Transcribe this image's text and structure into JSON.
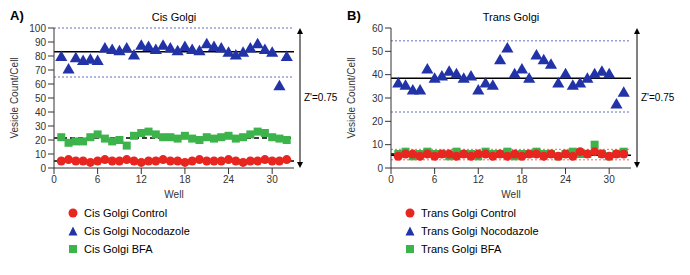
{
  "chart_data": [
    {
      "type": "scatter",
      "title": "Cis Golgi",
      "annotations": [
        "A)",
        "Z'=0.75"
      ],
      "xlabel": "Well",
      "ylabel": "Vesicle Count/Cell",
      "legend": "bottom",
      "x": [
        1,
        2,
        3,
        4,
        5,
        6,
        7,
        8,
        9,
        10,
        11,
        12,
        13,
        14,
        15,
        16,
        17,
        18,
        19,
        20,
        21,
        22,
        23,
        24,
        25,
        26,
        27,
        28,
        29,
        30,
        31,
        32
      ],
      "xlim": [
        0,
        33
      ],
      "xticks": [
        0,
        6,
        12,
        18,
        24,
        30
      ],
      "ylim": [
        0,
        100
      ],
      "yticks": [
        0,
        10,
        20,
        30,
        40,
        50,
        60,
        70,
        80,
        90,
        100
      ],
      "series": [
        {
          "name": "Cis Golgi Control",
          "color": "#e8251f",
          "marker": "circle",
          "line_style": "solid",
          "mean": 5,
          "values": [
            5,
            6,
            5,
            5,
            4,
            5,
            6,
            5,
            5,
            6,
            5,
            4,
            5,
            5,
            6,
            5,
            5,
            4,
            5,
            6,
            5,
            5,
            5,
            6,
            5,
            4,
            5,
            5,
            6,
            5,
            5,
            6
          ]
        },
        {
          "name": "Cis Golgi Nocodazole",
          "color": "#2233a8",
          "marker": "triangle",
          "line_style": "solid",
          "mean": 83,
          "lower": 65,
          "upper": 100,
          "values": [
            79,
            70,
            78,
            76,
            77,
            76,
            85,
            84,
            83,
            85,
            80,
            87,
            86,
            84,
            87,
            85,
            83,
            86,
            84,
            83,
            88,
            86,
            85,
            82,
            80,
            82,
            85,
            88,
            84,
            82,
            58,
            79
          ]
        },
        {
          "name": "Cis Golgi BFA",
          "color": "#3cb44b",
          "marker": "square",
          "line_style": "dashed",
          "mean": 21.5,
          "values": [
            22,
            18,
            19,
            19,
            22,
            24,
            21,
            19,
            20,
            16,
            23,
            25,
            26,
            24,
            22,
            22,
            21,
            23,
            21,
            20,
            22,
            21,
            22,
            23,
            21,
            22,
            24,
            26,
            25,
            22,
            21,
            20
          ]
        }
      ]
    },
    {
      "type": "scatter",
      "title": "Trans Golgi",
      "annotations": [
        "B)",
        "Z'=0.75"
      ],
      "xlabel": "Well",
      "ylabel": "Vesicle Count/Cell",
      "legend": "bottom",
      "x": [
        1,
        2,
        3,
        4,
        5,
        6,
        7,
        8,
        9,
        10,
        11,
        12,
        13,
        14,
        15,
        16,
        17,
        18,
        19,
        20,
        21,
        22,
        23,
        24,
        25,
        26,
        27,
        28,
        29,
        30,
        31,
        32
      ],
      "xlim": [
        0,
        33
      ],
      "xticks": [
        0,
        6,
        12,
        18,
        24,
        30
      ],
      "ylim": [
        0,
        60
      ],
      "yticks": [
        0,
        10,
        20,
        30,
        40,
        50,
        60
      ],
      "series": [
        {
          "name": "Trans Golgi Control",
          "color": "#e8251f",
          "marker": "circle",
          "line_style": "solid",
          "mean": 5.5,
          "lower": 3.5,
          "upper": 8,
          "values": [
            5,
            6,
            6,
            5,
            6,
            5,
            6,
            6,
            5,
            6,
            5,
            6,
            6,
            5,
            6,
            5,
            6,
            5,
            6,
            6,
            5,
            6,
            5,
            6,
            5,
            7,
            6,
            7,
            6,
            5,
            6,
            6
          ]
        },
        {
          "name": "Trans Golgi Nocodazole",
          "color": "#2233a8",
          "marker": "triangle",
          "line_style": "solid",
          "mean": 38.5,
          "lower": 24,
          "upper": 54.5,
          "values": [
            36,
            35,
            33,
            33,
            42,
            38,
            39,
            41,
            40,
            38,
            39,
            33,
            36,
            35,
            46,
            51,
            40,
            42,
            38,
            48,
            46,
            44,
            36,
            40,
            35,
            36,
            38,
            40,
            41,
            40,
            27,
            32
          ]
        },
        {
          "name": "Trans Golgi BFA",
          "color": "#3cb44b",
          "marker": "square",
          "line_style": "dashed",
          "mean": 6,
          "values": [
            6,
            7,
            5,
            6,
            7,
            6,
            6,
            5,
            7,
            6,
            6,
            5,
            7,
            6,
            6,
            7,
            5,
            6,
            6,
            7,
            6,
            6,
            5,
            6,
            7,
            6,
            6,
            10,
            6,
            5,
            6,
            7
          ]
        }
      ]
    }
  ]
}
